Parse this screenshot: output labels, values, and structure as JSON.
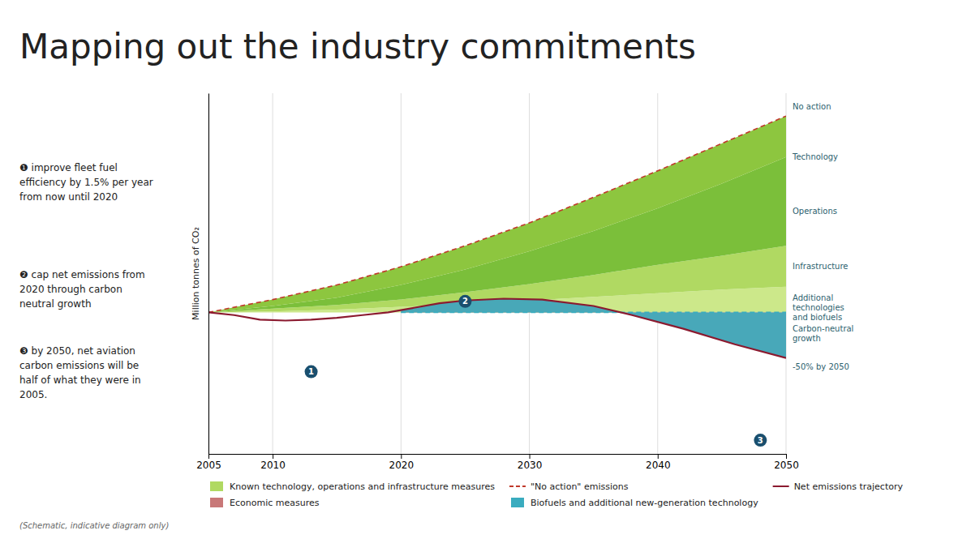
{
  "chart_data": {
    "type": "area",
    "title": "Mapping out the industry commitments",
    "ylabel": "Million tonnes of CO₂",
    "x": [
      2005,
      2010,
      2015,
      2020,
      2025,
      2030,
      2035,
      2040,
      2045,
      2050
    ],
    "xlim": [
      2005,
      2050
    ],
    "xticks": [
      2005,
      2010,
      2020,
      2030,
      2040,
      2050
    ],
    "ylim": [
      -0.55,
      3.4
    ],
    "yticks": [],
    "grid": true,
    "tick_labels": "x",
    "legend": "bottom",
    "baseline": 1.0,
    "series": [
      {
        "type": "area",
        "color": "#cce88a",
        "values": [
          1.0,
          1.01,
          1.03,
          1.06,
          1.09,
          1.13,
          1.17,
          1.21,
          1.25,
          1.28
        ]
      },
      {
        "name": "Known technology, operations and infrastructure measures",
        "type": "area",
        "color": "#b0d962",
        "values": [
          1.0,
          1.04,
          1.08,
          1.14,
          1.22,
          1.31,
          1.41,
          1.52,
          1.62,
          1.73
        ]
      },
      {
        "type": "area",
        "color": "#7bbf3a",
        "values": [
          1.0,
          1.07,
          1.16,
          1.3,
          1.47,
          1.67,
          1.89,
          2.14,
          2.41,
          2.7
        ]
      },
      {
        "type": "area",
        "color": "#8dc63f",
        "values": [
          1.0,
          1.14,
          1.3,
          1.5,
          1.73,
          1.98,
          2.26,
          2.55,
          2.85,
          3.15
        ]
      },
      {
        "name": "Economic measures",
        "type": "area",
        "color": "#c87878",
        "x": [
          2005,
          2007,
          2009,
          2011,
          2013,
          2015,
          2017,
          2019,
          2021,
          2023,
          2025,
          2028,
          2031,
          2035,
          2038,
          2042,
          2046,
          2050
        ],
        "values": [
          1.0,
          0.97,
          0.92,
          0.91,
          0.92,
          0.94,
          0.97,
          1.0,
          1.05,
          1.1,
          1.13,
          1.15,
          1.14,
          1.07,
          0.97,
          0.82,
          0.65,
          0.5
        ]
      },
      {
        "name": "\"No action\" emissions",
        "type": "line",
        "line_style": "dashed",
        "color": "#c0392b",
        "values": [
          1.0,
          1.14,
          1.3,
          1.5,
          1.73,
          1.98,
          2.26,
          2.55,
          2.85,
          3.15
        ]
      },
      {
        "name": "Biofuels and additional new-generation technology",
        "type": "area",
        "color": "#3aacbf",
        "x": [
          2005,
          2007,
          2009,
          2011,
          2013,
          2015,
          2017,
          2019,
          2021,
          2023,
          2025,
          2028,
          2031,
          2035,
          2038,
          2042,
          2046,
          2050
        ],
        "values": [
          1.0,
          0.97,
          0.92,
          0.91,
          0.92,
          0.94,
          0.97,
          1.0,
          1.05,
          1.1,
          1.13,
          1.15,
          1.14,
          1.07,
          0.97,
          0.82,
          0.65,
          0.5
        ]
      },
      {
        "type": "line",
        "line_style": "dashed",
        "color": "#3aacbf",
        "x": [
          2020,
          2050
        ],
        "values": [
          1.0,
          1.0
        ]
      },
      {
        "name": "Net emissions trajectory",
        "type": "line",
        "color": "#8b1a2f",
        "x": [
          2005,
          2007,
          2009,
          2011,
          2013,
          2015,
          2017,
          2019,
          2021,
          2023,
          2025,
          2028,
          2031,
          2035,
          2038,
          2042,
          2046,
          2050
        ],
        "values": [
          1.0,
          0.97,
          0.92,
          0.91,
          0.92,
          0.94,
          0.97,
          1.0,
          1.05,
          1.1,
          1.13,
          1.15,
          1.14,
          1.07,
          0.97,
          0.82,
          0.65,
          0.5
        ]
      }
    ],
    "annotations": [
      {
        "text": "❶ improve fleet fuel\nefficiency by 1.5% per year\nfrom now until 2020"
      },
      {
        "text": "❷ cap net emissions from\n2020 through carbon\nneutral growth"
      },
      {
        "text": "❸ by 2050, net aviation\ncarbon emissions will be\nhalf of what they were in\n2005."
      },
      {
        "text": "1",
        "x": 2013,
        "y": 0.35,
        "color": "#1a4f6e"
      },
      {
        "text": "2",
        "x": 2025,
        "y": 1.12,
        "color": "#1a4f6e"
      },
      {
        "text": "3",
        "x": 2048,
        "y": -0.4,
        "color": "#1a4f6e"
      },
      {
        "text": "No action",
        "y": 3.25
      },
      {
        "text": "Technology",
        "y": 2.7
      },
      {
        "text": "Operations",
        "y": 2.1
      },
      {
        "text": "Infrastructure",
        "y": 1.5
      },
      {
        "text": "Additional\ntechnologies\nand biofuels",
        "y": 1.05
      },
      {
        "text": "Carbon-neutral\ngrowth",
        "y": 0.9
      },
      {
        "text": "-50% by 2050",
        "y": 0.4
      }
    ],
    "footnote": "(Schematic, indicative diagram only)"
  }
}
